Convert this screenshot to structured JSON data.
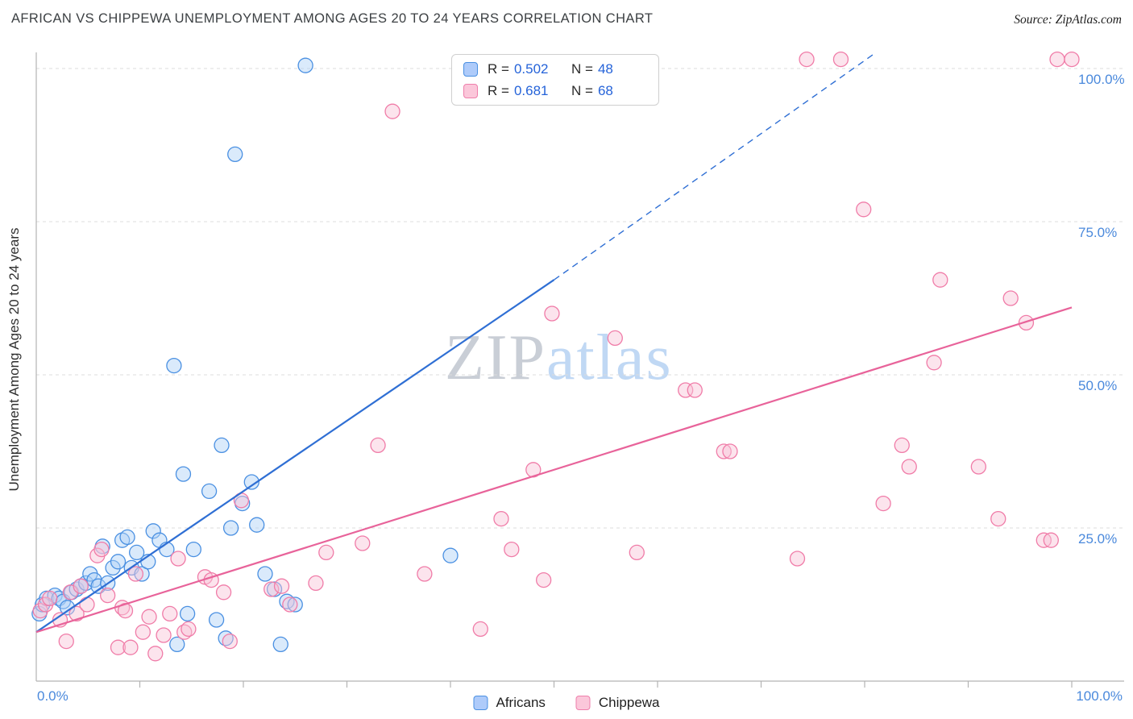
{
  "header": {
    "title": "AFRICAN VS CHIPPEWA UNEMPLOYMENT AMONG AGES 20 TO 24 YEARS CORRELATION CHART",
    "source": "Source: ZipAtlas.com"
  },
  "watermark": {
    "part1": "ZIP",
    "part2": "atlas"
  },
  "correlation_legend": {
    "rows": [
      {
        "r_label": "R =",
        "r_value": "0.502",
        "n_label": "N =",
        "n_value": "48"
      },
      {
        "r_label": "R =",
        "r_value": "0.681",
        "n_label": "N =",
        "n_value": "68"
      }
    ]
  },
  "bottom_legend": {
    "items": [
      {
        "label": "Africans"
      },
      {
        "label": "Chippewa"
      }
    ]
  },
  "chart_data": {
    "type": "scatter",
    "title": "AFRICAN VS CHIPPEWA UNEMPLOYMENT AMONG AGES 20 TO 24 YEARS CORRELATION CHART",
    "xlabel": "",
    "ylabel": "Unemployment Among Ages 20 to 24 years",
    "xlim": [
      0,
      100
    ],
    "ylim": [
      0,
      105
    ],
    "grid": "horizontal-dashed",
    "legend_position": "top-center",
    "axis_color": "#b3b3b3",
    "grid_color": "#dcdcdc",
    "tick_label_color": "#4a89dc",
    "y_ticks": [
      {
        "value": 25,
        "label": "25.0%"
      },
      {
        "value": 50,
        "label": "50.0%"
      },
      {
        "value": 75,
        "label": "75.0%"
      },
      {
        "value": 100,
        "label": "100.0%"
      }
    ],
    "x_ticks": [
      {
        "value": 0,
        "label": "0.0%"
      },
      {
        "value": 100,
        "label": "100.0%"
      }
    ],
    "minor_x_tick_step": 10,
    "series": [
      {
        "name": "Africans",
        "R": 0.502,
        "N": 48,
        "fill": "#add0f7",
        "stroke": "#4a90e2",
        "points": [
          [
            0.3,
            11
          ],
          [
            0.6,
            12.5
          ],
          [
            1,
            13.5
          ],
          [
            1.8,
            14
          ],
          [
            2.2,
            13.5
          ],
          [
            2.6,
            13
          ],
          [
            3,
            12
          ],
          [
            3.4,
            14.5
          ],
          [
            3.9,
            15
          ],
          [
            4.3,
            15.5
          ],
          [
            4.8,
            16
          ],
          [
            5.2,
            17.5
          ],
          [
            5.6,
            16.5
          ],
          [
            6,
            15.5
          ],
          [
            6.4,
            22
          ],
          [
            6.9,
            16
          ],
          [
            7.4,
            18.5
          ],
          [
            7.9,
            19.5
          ],
          [
            8.3,
            23
          ],
          [
            8.8,
            23.5
          ],
          [
            9.2,
            18.5
          ],
          [
            9.7,
            21
          ],
          [
            10.2,
            17.5
          ],
          [
            10.8,
            19.5
          ],
          [
            11.3,
            24.5
          ],
          [
            11.9,
            23
          ],
          [
            12.6,
            21.5
          ],
          [
            13.3,
            51.5
          ],
          [
            13.6,
            6
          ],
          [
            14.2,
            33.8
          ],
          [
            14.6,
            11
          ],
          [
            15.2,
            21.5
          ],
          [
            16.7,
            31
          ],
          [
            17.4,
            10
          ],
          [
            17.9,
            38.5
          ],
          [
            18.3,
            7
          ],
          [
            18.8,
            25
          ],
          [
            19.2,
            86
          ],
          [
            19.9,
            29
          ],
          [
            20.8,
            32.5
          ],
          [
            21.3,
            25.5
          ],
          [
            22.1,
            17.5
          ],
          [
            23,
            15
          ],
          [
            23.6,
            6
          ],
          [
            24.2,
            13
          ],
          [
            25,
            12.5
          ],
          [
            26,
            100.5
          ],
          [
            40,
            20.5
          ]
        ]
      },
      {
        "name": "Chippewa",
        "R": 0.681,
        "N": 68,
        "fill": "#f9c4d8",
        "stroke": "#f07ca8",
        "points": [
          [
            0.4,
            11.5
          ],
          [
            0.9,
            12.5
          ],
          [
            1.3,
            13.5
          ],
          [
            2.3,
            10
          ],
          [
            2.9,
            6.5
          ],
          [
            3.3,
            14.5
          ],
          [
            3.9,
            11
          ],
          [
            4.3,
            15.5
          ],
          [
            4.9,
            12.5
          ],
          [
            5.9,
            20.5
          ],
          [
            6.3,
            21.5
          ],
          [
            6.9,
            14
          ],
          [
            7.9,
            5.5
          ],
          [
            8.3,
            12
          ],
          [
            8.6,
            11.5
          ],
          [
            9.1,
            5.5
          ],
          [
            9.6,
            17.5
          ],
          [
            10.3,
            8
          ],
          [
            10.9,
            10.5
          ],
          [
            11.5,
            4.5
          ],
          [
            12.3,
            7.5
          ],
          [
            12.9,
            11
          ],
          [
            13.7,
            20
          ],
          [
            14.3,
            8
          ],
          [
            14.7,
            8.5
          ],
          [
            16.3,
            17
          ],
          [
            16.9,
            16.5
          ],
          [
            18.1,
            14.5
          ],
          [
            18.7,
            6.5
          ],
          [
            19.8,
            29.5
          ],
          [
            22.7,
            15
          ],
          [
            23.7,
            15.5
          ],
          [
            24.5,
            12.5
          ],
          [
            27,
            16
          ],
          [
            28,
            21
          ],
          [
            31.5,
            22.5
          ],
          [
            33,
            38.5
          ],
          [
            34.4,
            93
          ],
          [
            37.5,
            17.5
          ],
          [
            42.9,
            8.5
          ],
          [
            44.9,
            26.5
          ],
          [
            45.9,
            21.5
          ],
          [
            48,
            34.5
          ],
          [
            49,
            16.5
          ],
          [
            49.8,
            60
          ],
          [
            55.9,
            56
          ],
          [
            58,
            21
          ],
          [
            62.7,
            47.5
          ],
          [
            63.6,
            47.5
          ],
          [
            66.4,
            37.5
          ],
          [
            67,
            37.5
          ],
          [
            73.5,
            20
          ],
          [
            74.4,
            101.5
          ],
          [
            77.7,
            101.5
          ],
          [
            79.9,
            77
          ],
          [
            81.8,
            29
          ],
          [
            83.6,
            38.5
          ],
          [
            84.3,
            35
          ],
          [
            86.7,
            52
          ],
          [
            87.3,
            65.5
          ],
          [
            91,
            35
          ],
          [
            92.9,
            26.5
          ],
          [
            94.1,
            62.5
          ],
          [
            95.6,
            58.5
          ],
          [
            97.3,
            23
          ],
          [
            98,
            23
          ],
          [
            98.6,
            101.5
          ],
          [
            100,
            101.5
          ]
        ]
      }
    ],
    "trend_lines": [
      {
        "series": "Africans",
        "color": "#2f6fd4",
        "solid": [
          [
            0,
            8
          ],
          [
            50,
            65.5
          ]
        ],
        "dashed": [
          [
            50,
            65.5
          ],
          [
            81,
            102.5
          ]
        ]
      },
      {
        "series": "Chippewa",
        "color": "#e8639a",
        "solid": [
          [
            0,
            8
          ],
          [
            100,
            61
          ]
        ]
      }
    ]
  }
}
